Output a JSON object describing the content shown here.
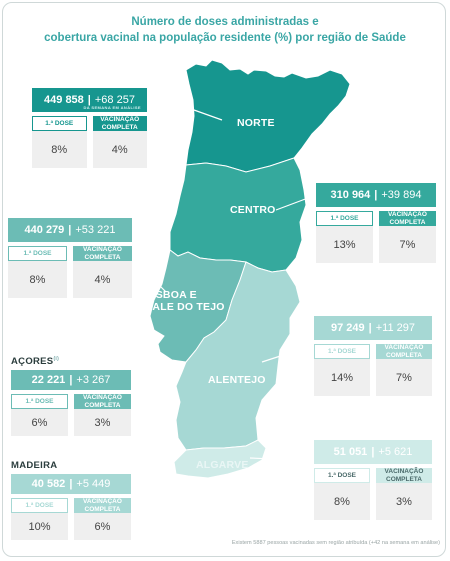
{
  "title": {
    "line1": "Número de doses administradas e",
    "line2": "cobertura vacinal na população residente (%) por região de Saúde"
  },
  "colors": {
    "norte": "#16968f",
    "centro": "#35a99d",
    "lisboa": "#6cbcb5",
    "alentejo": "#a6d8d4",
    "algarve": "#cfebe8",
    "title": "#3aa6a5"
  },
  "labels": {
    "dose": "1.ª DOSE",
    "vac": "VACINAÇÃO COMPLETA"
  },
  "regions": {
    "norte": {
      "name": "NORTE",
      "total": "449 858",
      "delta": "+68 257",
      "note": "DA SEMANA EM ANÁLISE",
      "dose": "8%",
      "vac": "4%"
    },
    "centro": {
      "name": "CENTRO",
      "total": "310 964",
      "delta": "+39 894",
      "dose": "13%",
      "vac": "7%"
    },
    "lisboa": {
      "name_line1": "LISBOA E",
      "name_line2": "VALE DO TEJO",
      "total": "440 279",
      "delta": "+53 221",
      "dose": "8%",
      "vac": "4%"
    },
    "alentejo": {
      "name": "ALENTEJO",
      "total": "97 249",
      "delta": "+11 297",
      "dose": "14%",
      "vac": "7%"
    },
    "algarve": {
      "name": "ALGARVE",
      "total": "51 051",
      "delta": "+5 621",
      "dose": "8%",
      "vac": "3%"
    },
    "acores": {
      "name": "AÇORES",
      "total": "22 221",
      "delta": "+3 267",
      "dose": "6%",
      "vac": "3%"
    },
    "madeira": {
      "name": "MADEIRA",
      "total": "40 582",
      "delta": "+5 449",
      "dose": "10%",
      "vac": "6%"
    }
  },
  "footnote": "Existem 5887 pessoas vacinadas sem região atribuída (+42 na semana em análise)"
}
